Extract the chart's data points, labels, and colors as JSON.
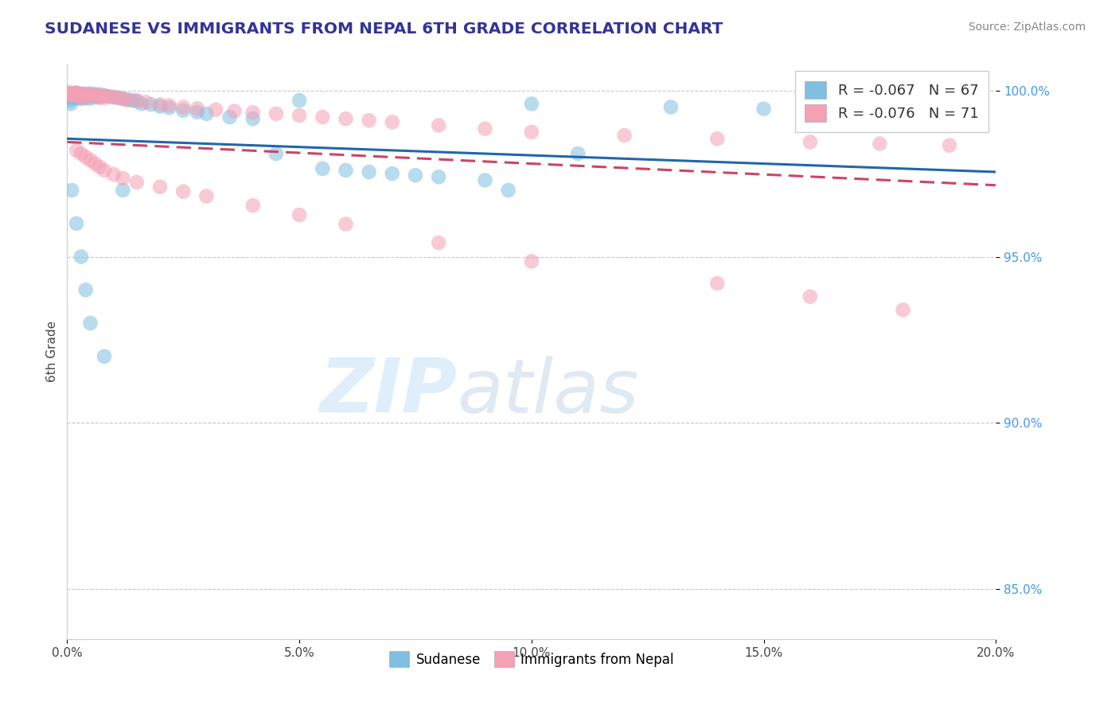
{
  "title": "SUDANESE VS IMMIGRANTS FROM NEPAL 6TH GRADE CORRELATION CHART",
  "source_text": "Source: ZipAtlas.com",
  "ylabel": "6th Grade",
  "xlim": [
    0.0,
    0.2
  ],
  "ylim": [
    0.835,
    1.008
  ],
  "xticks": [
    0.0,
    0.05,
    0.1,
    0.15,
    0.2
  ],
  "xtick_labels": [
    "0.0%",
    "5.0%",
    "10.0%",
    "15.0%",
    "20.0%"
  ],
  "yticks": [
    0.85,
    0.9,
    0.95,
    1.0
  ],
  "ytick_labels": [
    "85.0%",
    "90.0%",
    "95.0%",
    "100.0%"
  ],
  "blue_color": "#7fbfdf",
  "pink_color": "#f4a0b5",
  "blue_line_color": "#2166ac",
  "pink_line_color": "#cc4466",
  "R_blue": -0.067,
  "N_blue": 67,
  "R_pink": -0.076,
  "N_pink": 71,
  "legend_label_blue": "Sudanese",
  "legend_label_pink": "Immigrants from Nepal",
  "grid_color": "#c8c8c8",
  "background_color": "#ffffff",
  "watermark_text1": "ZIP",
  "watermark_text2": "atlas",
  "blue_line_x": [
    0.0,
    0.2
  ],
  "blue_line_y": [
    0.9855,
    0.9755
  ],
  "pink_line_x": [
    0.0,
    0.2
  ],
  "pink_line_y": [
    0.9845,
    0.9715
  ],
  "blue_points_x": [
    0.0003,
    0.0005,
    0.0007,
    0.0008,
    0.001,
    0.0012,
    0.0015,
    0.0018,
    0.002,
    0.002,
    0.0022,
    0.0025,
    0.003,
    0.003,
    0.003,
    0.0032,
    0.0035,
    0.004,
    0.004,
    0.004,
    0.0045,
    0.005,
    0.005,
    0.005,
    0.006,
    0.006,
    0.007,
    0.007,
    0.008,
    0.009,
    0.01,
    0.011,
    0.012,
    0.013,
    0.014,
    0.015,
    0.016,
    0.018,
    0.02,
    0.022,
    0.025,
    0.028,
    0.03,
    0.035,
    0.04,
    0.045,
    0.05,
    0.055,
    0.06,
    0.065,
    0.07,
    0.075,
    0.08,
    0.09,
    0.095,
    0.1,
    0.11,
    0.13,
    0.15,
    0.19,
    0.001,
    0.002,
    0.003,
    0.004,
    0.005,
    0.008,
    0.012
  ],
  "blue_points_y": [
    0.998,
    0.997,
    0.999,
    0.996,
    0.9985,
    0.9975,
    0.9992,
    0.9988,
    0.9993,
    0.9985,
    0.9978,
    0.9982,
    0.9988,
    0.9982,
    0.9975,
    0.999,
    0.9985,
    0.999,
    0.9983,
    0.9977,
    0.9985,
    0.999,
    0.9983,
    0.9976,
    0.9988,
    0.998,
    0.9988,
    0.9981,
    0.9985,
    0.9982,
    0.998,
    0.9978,
    0.9975,
    0.9972,
    0.997,
    0.9968,
    0.996,
    0.9958,
    0.9952,
    0.9948,
    0.994,
    0.9935,
    0.993,
    0.992,
    0.9915,
    0.981,
    0.997,
    0.9765,
    0.976,
    0.9755,
    0.975,
    0.9745,
    0.974,
    0.973,
    0.97,
    0.996,
    0.981,
    0.995,
    0.9945,
    0.994,
    0.97,
    0.96,
    0.95,
    0.94,
    0.93,
    0.92,
    0.97
  ],
  "pink_points_x": [
    0.0003,
    0.0005,
    0.0007,
    0.001,
    0.001,
    0.0015,
    0.002,
    0.002,
    0.0025,
    0.003,
    0.003,
    0.003,
    0.004,
    0.004,
    0.005,
    0.005,
    0.006,
    0.006,
    0.007,
    0.007,
    0.008,
    0.008,
    0.009,
    0.01,
    0.011,
    0.012,
    0.013,
    0.015,
    0.017,
    0.02,
    0.022,
    0.025,
    0.028,
    0.032,
    0.036,
    0.04,
    0.045,
    0.05,
    0.055,
    0.06,
    0.065,
    0.07,
    0.08,
    0.09,
    0.1,
    0.12,
    0.14,
    0.16,
    0.175,
    0.19,
    0.002,
    0.003,
    0.004,
    0.005,
    0.006,
    0.007,
    0.008,
    0.01,
    0.012,
    0.015,
    0.02,
    0.025,
    0.03,
    0.04,
    0.05,
    0.06,
    0.08,
    0.1,
    0.14,
    0.16,
    0.18
  ],
  "pink_points_y": [
    0.9995,
    0.999,
    0.9985,
    0.9992,
    0.9987,
    0.999,
    0.9993,
    0.9987,
    0.999,
    0.999,
    0.9984,
    0.9978,
    0.9988,
    0.9982,
    0.999,
    0.9983,
    0.9988,
    0.9981,
    0.9985,
    0.9978,
    0.9985,
    0.9978,
    0.9982,
    0.998,
    0.9978,
    0.9975,
    0.9972,
    0.997,
    0.9965,
    0.9958,
    0.9955,
    0.995,
    0.9946,
    0.9942,
    0.9938,
    0.9934,
    0.993,
    0.9925,
    0.992,
    0.9915,
    0.991,
    0.9905,
    0.9895,
    0.9885,
    0.9875,
    0.9865,
    0.9855,
    0.9845,
    0.984,
    0.9835,
    0.982,
    0.981,
    0.98,
    0.979,
    0.978,
    0.977,
    0.976,
    0.9748,
    0.9736,
    0.9724,
    0.971,
    0.9696,
    0.9682,
    0.9654,
    0.9626,
    0.9598,
    0.9542,
    0.9486,
    0.942,
    0.938,
    0.934
  ]
}
